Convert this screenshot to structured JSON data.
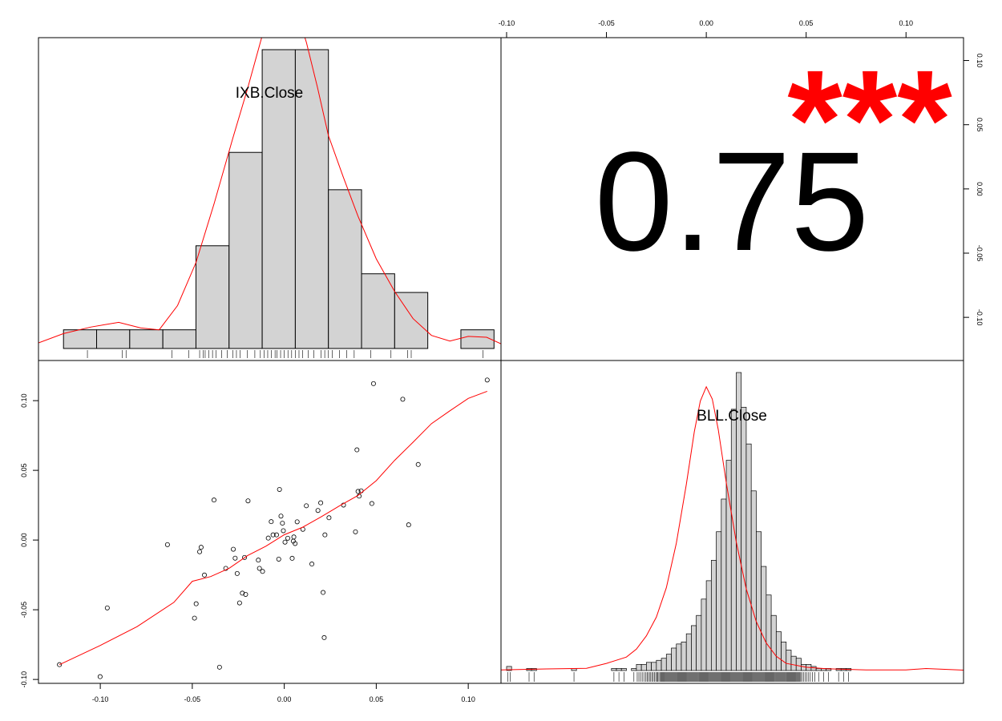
{
  "chart_data": {
    "type": "chart.Correlation",
    "variables": [
      "IXB.Close",
      "BLL.Close"
    ],
    "correlation": {
      "value": "0.75",
      "stars": "***"
    },
    "axes": {
      "ixb_ticks": [
        -0.1,
        -0.05,
        0.0,
        0.05,
        0.1
      ],
      "ixb_tick_labels": [
        "-0.10",
        "-0.05",
        "0.00",
        "0.05",
        "0.10"
      ],
      "bll_ticks": [
        -0.1,
        -0.05,
        0.0,
        0.05,
        0.1
      ],
      "bll_tick_labels": [
        "-0.10",
        "-0.05",
        "0.00",
        "0.05",
        "0.10"
      ],
      "ixb_range": [
        -0.1336,
        0.1178
      ],
      "bll_range": [
        -0.1028,
        0.1288
      ]
    },
    "ixb_histogram": {
      "breaks": [
        -0.12,
        -0.102,
        -0.084,
        -0.066,
        -0.048,
        -0.03,
        -0.012,
        0.006,
        0.024,
        0.042,
        0.06,
        0.078,
        0.096,
        0.114
      ],
      "counts": [
        2,
        2,
        2,
        2,
        11,
        21,
        32,
        32,
        17,
        8,
        6,
        0,
        2
      ],
      "ymax": 32,
      "density": [
        [
          -0.1336,
          0.6
        ],
        [
          -0.12,
          1.6
        ],
        [
          -0.105,
          2.3
        ],
        [
          -0.09,
          2.8
        ],
        [
          -0.078,
          2.2
        ],
        [
          -0.068,
          2.0
        ],
        [
          -0.058,
          4.6
        ],
        [
          -0.048,
          9.2
        ],
        [
          -0.038,
          15.6
        ],
        [
          -0.028,
          22.5
        ],
        [
          -0.02,
          27.8
        ],
        [
          -0.012,
          33.5
        ],
        [
          -0.006,
          36.5
        ],
        [
          0.0,
          37.6
        ],
        [
          0.006,
          36.5
        ],
        [
          0.012,
          32.8
        ],
        [
          0.018,
          28.0
        ],
        [
          0.024,
          22.8
        ],
        [
          0.032,
          18.4
        ],
        [
          0.04,
          14.2
        ],
        [
          0.05,
          9.6
        ],
        [
          0.06,
          6.1
        ],
        [
          0.07,
          3.2
        ],
        [
          0.08,
          1.4
        ],
        [
          0.09,
          0.8
        ],
        [
          0.1,
          1.3
        ],
        [
          0.11,
          1.2
        ],
        [
          0.1178,
          0.5
        ]
      ],
      "rug": [
        -0.107,
        -0.088,
        -0.086,
        -0.061,
        -0.052,
        -0.046,
        -0.044,
        -0.043,
        -0.041,
        -0.039,
        -0.037,
        -0.034,
        -0.031,
        -0.028,
        -0.026,
        -0.024,
        -0.02,
        -0.016,
        -0.013,
        -0.011,
        -0.009,
        -0.007,
        -0.005,
        -0.004,
        -0.002,
        0.0,
        0.002,
        0.004,
        0.006,
        0.008,
        0.01,
        0.013,
        0.016,
        0.02,
        0.022,
        0.024,
        0.026,
        0.03,
        0.034,
        0.038,
        0.047,
        0.058,
        0.067,
        0.069,
        0.108
      ]
    },
    "bll_histogram": {
      "bin_width": 0.0025,
      "start": -0.1,
      "counts": [
        2,
        0,
        0,
        0,
        1,
        1,
        0,
        0,
        0,
        0,
        0,
        0,
        0,
        1,
        0,
        0,
        0,
        0,
        0,
        0,
        0,
        1,
        1,
        1,
        0,
        1,
        3,
        3,
        4,
        4,
        5,
        6,
        8,
        11,
        13,
        14,
        18,
        22,
        27,
        35,
        44,
        54,
        68,
        84,
        103,
        128,
        146,
        129,
        111,
        88,
        68,
        51,
        37,
        27,
        19,
        14,
        10,
        7,
        6,
        3,
        3,
        2,
        1,
        1,
        1,
        0,
        1,
        1,
        1,
        0,
        0,
        0,
        0,
        0,
        0,
        0,
        0,
        0,
        0,
        0,
        0,
        0,
        0,
        0,
        0,
        0,
        0,
        0,
        0,
        0,
        0,
        0,
        0,
        0,
        0,
        0,
        0,
        0,
        0,
        0,
        0,
        0,
        1,
        0,
        0,
        0,
        0,
        0,
        0,
        0,
        0,
        0,
        0,
        0,
        0,
        0,
        0,
        0,
        0,
        0,
        0,
        0,
        0,
        0,
        0,
        0,
        0,
        0,
        0,
        0,
        0,
        0,
        0,
        0,
        0,
        0,
        0,
        0,
        0,
        0,
        0,
        0,
        0,
        0,
        0,
        0,
        0,
        0,
        0,
        0,
        0,
        0,
        0,
        0,
        0,
        0,
        0,
        0,
        0,
        0,
        0,
        0,
        0,
        0,
        0,
        0,
        0,
        0,
        0,
        0,
        0,
        0,
        0,
        0,
        0,
        0,
        0,
        0,
        0,
        0,
        0,
        0,
        0,
        0,
        0,
        0,
        0,
        0,
        0,
        0,
        0,
        0,
        0,
        0,
        0,
        0,
        0,
        0,
        0,
        0,
        0,
        0,
        0,
        0,
        0,
        0,
        0,
        0,
        0,
        0,
        0,
        0,
        0,
        0,
        0,
        0,
        0,
        0,
        0
      ],
      "ymax": 146,
      "density": [
        [
          -0.1028,
          0.3
        ],
        [
          -0.08,
          0.8
        ],
        [
          -0.06,
          1.1
        ],
        [
          -0.05,
          3.5
        ],
        [
          -0.04,
          6.6
        ],
        [
          -0.035,
          10.5
        ],
        [
          -0.03,
          17.0
        ],
        [
          -0.025,
          26.2
        ],
        [
          -0.02,
          40.6
        ],
        [
          -0.015,
          62.4
        ],
        [
          -0.01,
          91.2
        ],
        [
          -0.006,
          117.0
        ],
        [
          -0.003,
          132.0
        ],
        [
          0.0,
          139.0
        ],
        [
          0.003,
          133.0
        ],
        [
          0.006,
          118.0
        ],
        [
          0.01,
          92.0
        ],
        [
          0.015,
          63.0
        ],
        [
          0.02,
          40.0
        ],
        [
          0.025,
          24.0
        ],
        [
          0.03,
          13.5
        ],
        [
          0.035,
          7.0
        ],
        [
          0.04,
          3.5
        ],
        [
          0.05,
          1.6
        ],
        [
          0.06,
          0.9
        ],
        [
          0.08,
          0.3
        ],
        [
          0.1,
          0.3
        ],
        [
          0.11,
          1.0
        ],
        [
          0.1288,
          0.2
        ]
      ]
    },
    "scatter": {
      "x": [
        -0.1222,
        -0.1001,
        -0.0962,
        -0.0635,
        -0.0488,
        -0.0479,
        -0.046,
        -0.0452,
        -0.0434,
        -0.0382,
        -0.0352,
        -0.0318,
        -0.0277,
        -0.0267,
        -0.0256,
        -0.0243,
        -0.0228,
        -0.0216,
        -0.021,
        -0.0197,
        -0.0141,
        -0.0135,
        -0.0118,
        -0.0087,
        -0.0071,
        -0.0061,
        -0.0042,
        -0.003,
        -0.0026,
        -0.0018,
        -0.001,
        -0.0005,
        0.0004,
        0.0019,
        0.0043,
        0.0049,
        0.0052,
        0.0059,
        0.007,
        0.0101,
        0.012,
        0.015,
        0.0183,
        0.0198,
        0.0211,
        0.0217,
        0.0221,
        0.0243,
        0.0322,
        0.0387,
        0.0395,
        0.0401,
        0.0407,
        0.0418,
        0.0476,
        0.0485,
        0.0644,
        0.0676,
        0.0728,
        0.1103
      ],
      "y": [
        -0.0894,
        -0.098,
        -0.0487,
        -0.0033,
        -0.056,
        -0.0457,
        -0.0084,
        -0.0052,
        -0.0251,
        0.0287,
        -0.0912,
        -0.0203,
        -0.0066,
        -0.013,
        -0.024,
        -0.0451,
        -0.0381,
        -0.0125,
        -0.039,
        0.0281,
        -0.0144,
        -0.0203,
        -0.0225,
        0.0014,
        0.0132,
        0.0037,
        0.0037,
        -0.0137,
        0.0363,
        0.0172,
        0.0121,
        0.0067,
        -0.0015,
        0.0013,
        -0.0131,
        -0.0008,
        0.0022,
        -0.0025,
        0.0131,
        0.0077,
        0.0246,
        -0.0172,
        0.0212,
        0.0267,
        -0.0376,
        -0.07,
        0.0037,
        0.016,
        0.0251,
        0.0059,
        0.0647,
        0.0349,
        0.0315,
        0.0353,
        0.0262,
        0.1122,
        0.101,
        0.0109,
        0.0542,
        0.1148
      ],
      "fit": [
        [
          -0.1222,
          -0.0894
        ],
        [
          -0.1,
          -0.0756
        ],
        [
          -0.08,
          -0.0621
        ],
        [
          -0.06,
          -0.0447
        ],
        [
          -0.05,
          -0.0296
        ],
        [
          -0.04,
          -0.0262
        ],
        [
          -0.03,
          -0.0203
        ],
        [
          -0.02,
          -0.0112
        ],
        [
          -0.01,
          -0.0044
        ],
        [
          0.0,
          0.0038
        ],
        [
          0.01,
          0.0092
        ],
        [
          0.02,
          0.0166
        ],
        [
          0.03,
          0.0245
        ],
        [
          0.04,
          0.0319
        ],
        [
          0.05,
          0.0426
        ],
        [
          0.06,
          0.0572
        ],
        [
          0.07,
          0.0702
        ],
        [
          0.08,
          0.0835
        ],
        [
          0.09,
          0.0927
        ],
        [
          0.1,
          0.1016
        ],
        [
          0.1103,
          0.1067
        ]
      ]
    },
    "colors": {
      "bar_fill": "#d3d3d3",
      "bar_stroke": "#000000",
      "density": "#ff0000",
      "fit": "#ff0000",
      "stars": "#ff0000",
      "text": "#000000"
    }
  }
}
